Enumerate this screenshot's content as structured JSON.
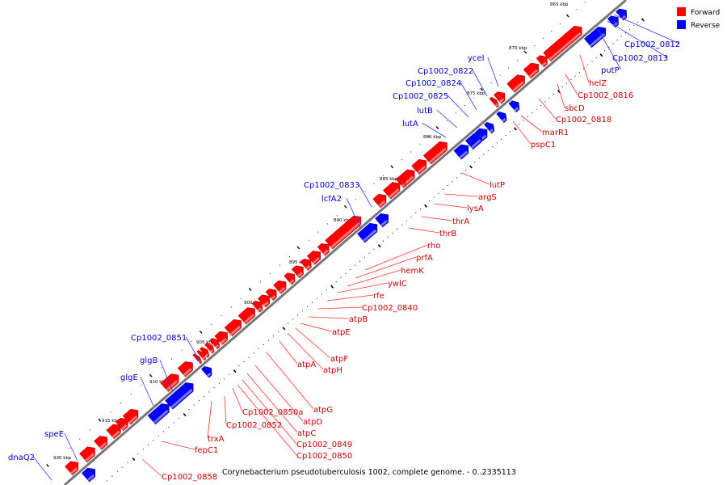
{
  "caption": "Corynebacterium pseudotuberculosis 1002, complete genome. - 0..2335113",
  "legend": [
    {
      "label": "Forward",
      "color": "#ff0000"
    },
    {
      "label": "Reverse",
      "color": "#0000ff"
    }
  ],
  "colors": {
    "forward": "#ff0000",
    "reverse": "#0000ff",
    "forward_label": "#cc0000",
    "reverse_label": "#0000cc",
    "backbone": "#777777"
  },
  "ticks": [
    "865 kbp",
    "870 kbp",
    "875 kbp",
    "880 kbp",
    "885 kbp",
    "890 kbp",
    "895 kbp",
    "900 kbp",
    "905 kbp",
    "910 kbp",
    "915 kbp",
    "920 kbp"
  ],
  "genes": [
    {
      "name": "Cp1002_0812",
      "strand": "reverse"
    },
    {
      "name": "Cp1002_0813",
      "strand": "reverse"
    },
    {
      "name": "putP",
      "strand": "reverse"
    },
    {
      "name": "helZ",
      "strand": "forward"
    },
    {
      "name": "Cp1002_0816",
      "strand": "forward"
    },
    {
      "name": "sbcD",
      "strand": "forward"
    },
    {
      "name": "Cp1002_0818",
      "strand": "forward"
    },
    {
      "name": "marR1",
      "strand": "forward"
    },
    {
      "name": "pspC1",
      "strand": "forward"
    },
    {
      "name": "yceI",
      "strand": "reverse"
    },
    {
      "name": "Cp1002_0822",
      "strand": "reverse"
    },
    {
      "name": "Cp1002_0824",
      "strand": "reverse"
    },
    {
      "name": "Cp1002_0825",
      "strand": "reverse"
    },
    {
      "name": "lutB",
      "strand": "reverse"
    },
    {
      "name": "lutA",
      "strand": "reverse"
    },
    {
      "name": "lutP",
      "strand": "forward"
    },
    {
      "name": "argS",
      "strand": "forward"
    },
    {
      "name": "lysA",
      "strand": "forward"
    },
    {
      "name": "thrA",
      "strand": "forward"
    },
    {
      "name": "thrB",
      "strand": "forward"
    },
    {
      "name": "Cp1002_0833",
      "strand": "reverse"
    },
    {
      "name": "lcfA2",
      "strand": "reverse"
    },
    {
      "name": "rho",
      "strand": "forward"
    },
    {
      "name": "prfA",
      "strand": "forward"
    },
    {
      "name": "hemK",
      "strand": "forward"
    },
    {
      "name": "ywlC",
      "strand": "forward"
    },
    {
      "name": "rfe",
      "strand": "forward"
    },
    {
      "name": "Cp1002_0840",
      "strand": "forward"
    },
    {
      "name": "atpB",
      "strand": "forward"
    },
    {
      "name": "atpE",
      "strand": "forward"
    },
    {
      "name": "atpF",
      "strand": "forward"
    },
    {
      "name": "atpH",
      "strand": "forward"
    },
    {
      "name": "atpA",
      "strand": "forward"
    },
    {
      "name": "atpG",
      "strand": "forward"
    },
    {
      "name": "atpD",
      "strand": "forward"
    },
    {
      "name": "atpC",
      "strand": "forward"
    },
    {
      "name": "Cp1002_0849",
      "strand": "forward"
    },
    {
      "name": "Cp1002_0850",
      "strand": "forward"
    },
    {
      "name": "Cp1002_0850a",
      "strand": "forward"
    },
    {
      "name": "Cp1002_0852",
      "strand": "forward"
    },
    {
      "name": "trxA",
      "strand": "forward"
    },
    {
      "name": "Cp1002_0851",
      "strand": "reverse"
    },
    {
      "name": "glgB",
      "strand": "reverse"
    },
    {
      "name": "glgE",
      "strand": "reverse"
    },
    {
      "name": "fepC1",
      "strand": "forward"
    },
    {
      "name": "Cp1002_0858",
      "strand": "forward"
    },
    {
      "name": "speE",
      "strand": "reverse"
    },
    {
      "name": "dnaQ2",
      "strand": "reverse"
    }
  ]
}
